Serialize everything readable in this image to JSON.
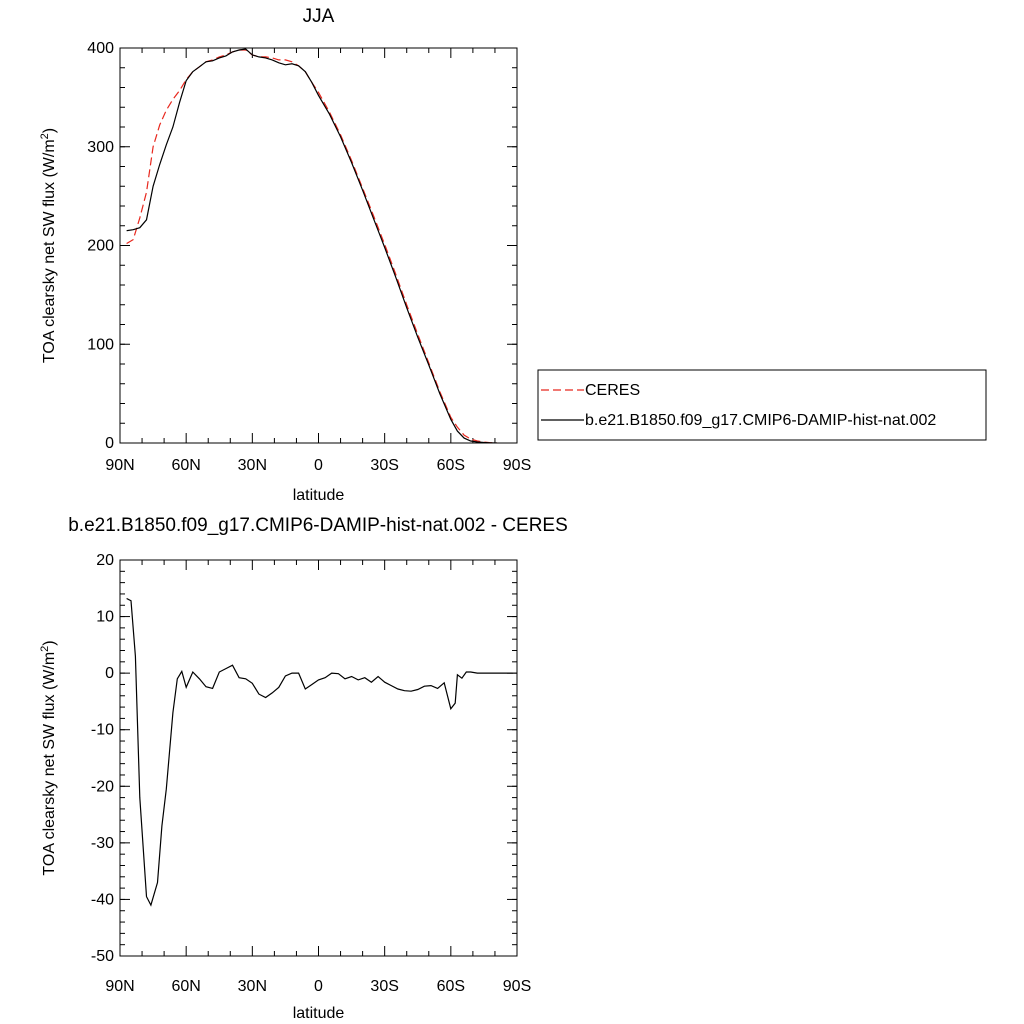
{
  "chart_data": [
    {
      "type": "line",
      "title": "JJA",
      "xlabel": "latitude",
      "ylabel": "TOA clearsky net SW flux (W/m",
      "ylabel_sup": "2",
      "ylabel_end": ")",
      "xlim": [
        90,
        -90
      ],
      "ylim": [
        0,
        400
      ],
      "xticks": [
        90,
        60,
        30,
        0,
        -30,
        -60,
        -90
      ],
      "xtick_labels": [
        "90N",
        "60N",
        "30N",
        "0",
        "30S",
        "60S",
        "90S"
      ],
      "yticks": [
        0,
        100,
        200,
        300,
        400
      ],
      "ytick_labels": [
        "0",
        "100",
        "200",
        "300",
        "400"
      ],
      "legend_position": "right",
      "series": [
        {
          "name": "CERES",
          "color": "#e8281e",
          "dash": "dashed",
          "x": [
            87,
            84,
            81,
            78,
            75,
            72,
            69,
            66,
            63,
            60,
            57,
            54,
            51,
            48,
            45,
            42,
            39,
            36,
            33,
            30,
            27,
            24,
            21,
            18,
            15,
            12,
            9,
            6,
            3,
            0,
            -5,
            -10,
            -15,
            -20,
            -25,
            -30,
            -35,
            -40,
            -45,
            -50,
            -55,
            -60,
            -63,
            -66,
            -69,
            -72,
            -75,
            -78,
            -81
          ],
          "y": [
            202,
            206,
            228,
            254,
            300,
            322,
            337,
            348,
            357,
            368,
            376,
            381,
            386,
            388,
            391,
            393,
            396,
            398,
            398,
            393,
            391,
            391,
            390,
            388,
            388,
            386,
            382,
            376,
            365,
            355,
            335,
            312,
            286,
            258,
            230,
            201,
            171,
            140,
            110,
            81,
            52,
            26,
            16,
            8,
            4,
            2,
            1,
            0.3,
            0
          ]
        },
        {
          "name": "b.e21.B1850.f09_g17.CMIP6-DAMIP-hist-nat.002",
          "color": "#000000",
          "dash": "solid",
          "x": [
            87,
            84,
            81,
            78,
            75,
            72,
            69,
            66,
            63,
            60,
            57,
            54,
            51,
            48,
            45,
            42,
            39,
            36,
            33,
            30,
            27,
            24,
            21,
            18,
            15,
            12,
            9,
            6,
            3,
            0,
            -5,
            -10,
            -15,
            -20,
            -25,
            -30,
            -35,
            -40,
            -45,
            -50,
            -55,
            -60,
            -63,
            -66,
            -69,
            -72,
            -75,
            -78,
            -81
          ],
          "y": [
            215,
            216,
            218,
            226,
            260,
            282,
            302,
            320,
            345,
            367,
            376,
            381,
            386,
            387,
            390,
            392,
            396,
            398,
            399,
            393,
            391,
            390,
            388,
            385,
            383,
            384,
            382,
            376,
            365,
            352,
            333,
            310,
            284,
            256,
            227,
            198,
            168,
            137,
            107,
            79,
            50,
            24,
            12,
            5,
            2,
            1,
            0.5,
            0.2,
            0
          ]
        }
      ]
    },
    {
      "type": "line",
      "title": "b.e21.B1850.f09_g17.CMIP6-DAMIP-hist-nat.002 - CERES",
      "xlabel": "latitude",
      "ylabel": "TOA clearsky net SW flux (W/m",
      "ylabel_sup": "2",
      "ylabel_end": ")",
      "xlim": [
        90,
        -90
      ],
      "ylim": [
        -50,
        20
      ],
      "xticks": [
        90,
        60,
        30,
        0,
        -30,
        -60,
        -90
      ],
      "xtick_labels": [
        "90N",
        "60N",
        "30N",
        "0",
        "30S",
        "60S",
        "90S"
      ],
      "yticks": [
        -50,
        -40,
        -30,
        -20,
        -10,
        0,
        10,
        20
      ],
      "ytick_labels": [
        "-50",
        "-40",
        "-30",
        "-20",
        "-10",
        "0",
        "10",
        "20"
      ],
      "series": [
        {
          "color": "#000000",
          "dash": "solid",
          "x": [
            87,
            85,
            83,
            81,
            78,
            76,
            73,
            71,
            69,
            66,
            64,
            62,
            60,
            57,
            54,
            51,
            48,
            45,
            42,
            39,
            36,
            33,
            30,
            27,
            24,
            21,
            18,
            15,
            12,
            9,
            6,
            3,
            0,
            -3,
            -6,
            -9,
            -12,
            -15,
            -18,
            -21,
            -24,
            -27,
            -30,
            -33,
            -36,
            -39,
            -42,
            -45,
            -48,
            -51,
            -54,
            -57,
            -60,
            -62,
            -63,
            -65,
            -67,
            -69,
            -72,
            -75,
            -78,
            -81,
            -85,
            -88
          ],
          "y": [
            13.2,
            12.8,
            3,
            -22,
            -39.5,
            -41,
            -37,
            -27,
            -20.5,
            -7,
            -1,
            0.3,
            -2.5,
            0.2,
            -1,
            -2.4,
            -2.7,
            0.2,
            0.8,
            1.4,
            -0.8,
            -1,
            -1.8,
            -3.7,
            -4.3,
            -3.5,
            -2.5,
            -0.5,
            0,
            0,
            -2.8,
            -2,
            -1.2,
            -0.8,
            0,
            -0.1,
            -1,
            -0.6,
            -1.2,
            -0.8,
            -1.6,
            -0.6,
            -1.6,
            -2.2,
            -2.8,
            -3.1,
            -3.2,
            -2.9,
            -2.3,
            -2.2,
            -2.7,
            -1.7,
            -6.3,
            -5.3,
            -0.3,
            -0.9,
            0.2,
            0.2,
            0,
            0,
            0,
            0,
            0,
            0
          ]
        }
      ]
    }
  ]
}
